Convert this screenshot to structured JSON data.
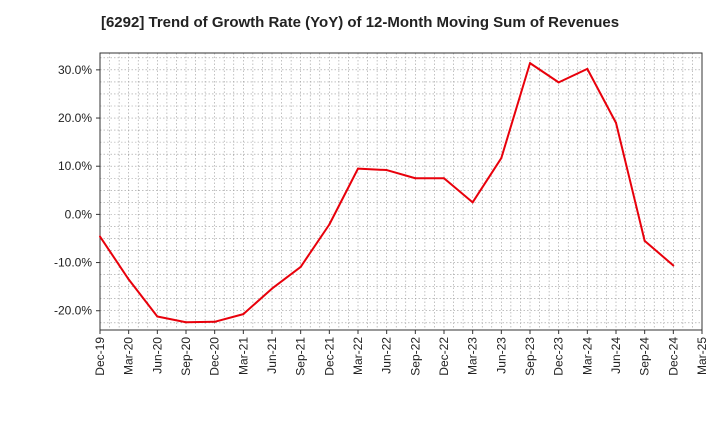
{
  "chart_data": {
    "type": "line",
    "title": "[6292]  Trend of Growth Rate (YoY) of 12-Month Moving Sum of Revenues",
    "xlabel": "",
    "ylabel": "",
    "x": [
      "Dec-19",
      "Mar-20",
      "Jun-20",
      "Sep-20",
      "Dec-20",
      "Mar-21",
      "Jun-21",
      "Sep-21",
      "Dec-21",
      "Mar-22",
      "Jun-22",
      "Sep-22",
      "Dec-22",
      "Mar-23",
      "Jun-23",
      "Sep-23",
      "Dec-23",
      "Mar-24",
      "Jun-24",
      "Sep-24",
      "Dec-24",
      "Mar-25"
    ],
    "series": [
      {
        "color": "#e8000b",
        "values": [
          -4.6,
          -13.5,
          -21.2,
          -22.4,
          -22.3,
          -20.7,
          -15.4,
          -10.9,
          -2.1,
          9.5,
          9.2,
          7.5,
          7.5,
          2.5,
          11.7,
          31.4,
          27.4,
          30.2,
          19.0,
          -5.5,
          -10.6,
          null
        ]
      }
    ],
    "ylim": [
      -24,
      33.5
    ],
    "yticks": [
      -20,
      -10,
      0,
      10,
      20,
      30
    ],
    "ytick_labels": [
      "-20.0%",
      "-10.0%",
      "0.0%",
      "10.0%",
      "20.0%",
      "30.0%"
    ],
    "grid": true,
    "legend": "none"
  }
}
